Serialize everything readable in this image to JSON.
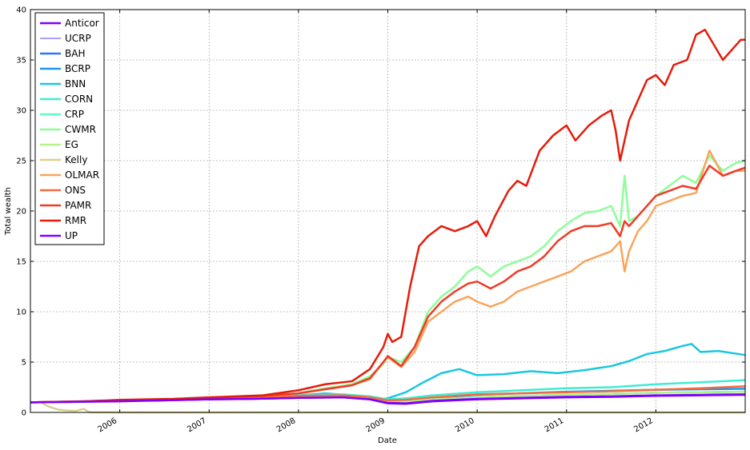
{
  "chart_data": {
    "type": "line",
    "title": "",
    "xlabel": "Date",
    "ylabel": "Total wealth",
    "xlim": [
      2005.0,
      2013.0
    ],
    "ylim": [
      0,
      40
    ],
    "x_ticks": [
      {
        "value": 2006.0,
        "label": "2006"
      },
      {
        "value": 2007.0,
        "label": "2007"
      },
      {
        "value": 2008.0,
        "label": "2008"
      },
      {
        "value": 2009.0,
        "label": "2009"
      },
      {
        "value": 2010.0,
        "label": "2010"
      },
      {
        "value": 2011.0,
        "label": "2011"
      },
      {
        "value": 2012.0,
        "label": "2012"
      }
    ],
    "y_ticks": [
      0,
      5,
      10,
      15,
      20,
      25,
      30,
      35,
      40
    ],
    "grid": true,
    "legend_position": "top-left",
    "series": [
      {
        "name": "Anticor",
        "color": "#7f00ff",
        "width": 2.5,
        "x": [
          2005.0,
          2005.5,
          2006.0,
          2006.5,
          2007.0,
          2007.5,
          2008.0,
          2008.5,
          2008.8,
          2009.0,
          2009.2,
          2009.5,
          2010.0,
          2010.5,
          2011.0,
          2011.5,
          2012.0,
          2012.5,
          2013.0
        ],
        "y": [
          1.0,
          1.05,
          1.15,
          1.2,
          1.3,
          1.35,
          1.45,
          1.5,
          1.3,
          0.9,
          0.85,
          1.1,
          1.3,
          1.4,
          1.5,
          1.55,
          1.65,
          1.7,
          1.75
        ]
      },
      {
        "name": "UCRP",
        "color": "#5a3cfd",
        "width": 1.0,
        "x": [
          2005.0,
          2005.5,
          2006.0,
          2006.5,
          2007.0,
          2007.5,
          2008.0,
          2008.5,
          2008.8,
          2009.0,
          2009.2,
          2009.5,
          2010.0,
          2010.5,
          2011.0,
          2011.5,
          2012.0,
          2012.5,
          2013.0
        ],
        "y": [
          1.0,
          1.05,
          1.15,
          1.25,
          1.35,
          1.4,
          1.55,
          1.6,
          1.4,
          1.0,
          1.0,
          1.2,
          1.45,
          1.55,
          1.7,
          1.8,
          1.9,
          1.95,
          2.0
        ]
      },
      {
        "name": "BAH",
        "color": "#2c78f3",
        "width": 2.5,
        "x": [
          2005.0,
          2005.5,
          2006.0,
          2006.5,
          2007.0,
          2007.5,
          2008.0,
          2008.5,
          2008.8,
          2009.0,
          2009.2,
          2009.5,
          2010.0,
          2010.5,
          2011.0,
          2011.5,
          2012.0,
          2012.5,
          2013.0
        ],
        "y": [
          1.0,
          1.05,
          1.15,
          1.25,
          1.35,
          1.45,
          1.55,
          1.6,
          1.4,
          1.1,
          1.05,
          1.3,
          1.5,
          1.65,
          1.75,
          1.85,
          1.95,
          2.0,
          2.05
        ]
      },
      {
        "name": "BCRP",
        "color": "#1996f3",
        "width": 2.5,
        "x": [
          2005.0,
          2005.5,
          2006.0,
          2006.5,
          2007.0,
          2007.5,
          2008.0,
          2008.5,
          2008.8,
          2009.0,
          2009.2,
          2009.5,
          2010.0,
          2010.5,
          2011.0,
          2011.5,
          2012.0,
          2012.5,
          2013.0
        ],
        "y": [
          1.0,
          1.05,
          1.2,
          1.3,
          1.4,
          1.5,
          1.65,
          1.7,
          1.5,
          1.2,
          1.2,
          1.45,
          1.75,
          1.9,
          2.05,
          2.15,
          2.25,
          2.3,
          2.35
        ]
      },
      {
        "name": "BNN",
        "color": "#1ac7e0",
        "width": 2.5,
        "x": [
          2005.0,
          2005.5,
          2006.0,
          2006.5,
          2007.0,
          2007.5,
          2008.0,
          2008.3,
          2008.6,
          2008.9,
          2009.0,
          2009.2,
          2009.4,
          2009.6,
          2009.8,
          2010.0,
          2010.3,
          2010.6,
          2010.9,
          2011.2,
          2011.5,
          2011.7,
          2011.9,
          2012.1,
          2012.3,
          2012.4,
          2012.5,
          2012.7,
          2013.0
        ],
        "y": [
          1.0,
          1.05,
          1.2,
          1.3,
          1.45,
          1.5,
          1.7,
          1.9,
          1.7,
          1.3,
          1.4,
          2.0,
          3.0,
          3.9,
          4.3,
          3.7,
          3.8,
          4.1,
          3.9,
          4.2,
          4.6,
          5.1,
          5.8,
          6.1,
          6.6,
          6.8,
          6.0,
          6.1,
          5.7
        ]
      },
      {
        "name": "CORN",
        "color": "#40ecd4",
        "width": 2.5,
        "x": [
          2005.0,
          2005.5,
          2006.0,
          2006.5,
          2007.0,
          2007.5,
          2008.0,
          2008.5,
          2008.8,
          2009.0,
          2009.2,
          2009.5,
          2010.0,
          2010.5,
          2011.0,
          2011.5,
          2012.0,
          2012.5,
          2013.0
        ],
        "y": [
          1.0,
          1.1,
          1.2,
          1.3,
          1.45,
          1.55,
          1.7,
          1.8,
          1.6,
          1.3,
          1.4,
          1.7,
          2.0,
          2.2,
          2.4,
          2.5,
          2.8,
          3.0,
          3.2
        ]
      },
      {
        "name": "CRP",
        "color": "#66fcc0",
        "width": 2.5,
        "x": [
          2005.0,
          2005.5,
          2006.0,
          2006.5,
          2007.0,
          2007.5,
          2008.0,
          2008.5,
          2008.8,
          2009.0,
          2009.2,
          2009.5,
          2010.0,
          2010.5,
          2011.0,
          2011.5,
          2012.0,
          2012.5,
          2013.0
        ],
        "y": [
          1.0,
          1.05,
          1.15,
          1.25,
          1.35,
          1.45,
          1.55,
          1.6,
          1.4,
          1.1,
          1.05,
          1.3,
          1.5,
          1.65,
          1.75,
          1.85,
          1.95,
          2.0,
          2.05
        ]
      },
      {
        "name": "CWMR",
        "color": "#8dfe9a",
        "width": 2.5,
        "x": [
          2005.0,
          2005.3,
          2005.6,
          2006.0,
          2006.3,
          2006.6,
          2007.0,
          2007.3,
          2007.6,
          2008.0,
          2008.3,
          2008.6,
          2008.8,
          2008.95,
          2009.0,
          2009.15,
          2009.3,
          2009.45,
          2009.6,
          2009.75,
          2009.9,
          2010.0,
          2010.15,
          2010.3,
          2010.45,
          2010.6,
          2010.75,
          2010.9,
          2011.05,
          2011.2,
          2011.35,
          2011.5,
          2011.6,
          2011.65,
          2011.7,
          2011.8,
          2011.9,
          2012.0,
          2012.15,
          2012.3,
          2012.45,
          2012.6,
          2012.75,
          2012.9,
          2013.0
        ],
        "y": [
          1.0,
          1.05,
          1.1,
          1.2,
          1.25,
          1.3,
          1.45,
          1.55,
          1.65,
          1.9,
          2.4,
          2.8,
          3.6,
          4.8,
          5.5,
          5.0,
          6.5,
          10.0,
          11.5,
          12.5,
          14.0,
          14.5,
          13.5,
          14.5,
          15.0,
          15.5,
          16.5,
          18.0,
          19.0,
          19.8,
          20.0,
          20.5,
          18.5,
          23.5,
          19.0,
          19.5,
          20.5,
          21.5,
          22.5,
          23.5,
          22.8,
          25.5,
          24.0,
          24.8,
          25.0
        ]
      },
      {
        "name": "EG",
        "color": "#b3f386",
        "width": 2.5,
        "x": [
          2005.0,
          2005.5,
          2006.0,
          2006.5,
          2007.0,
          2007.5,
          2008.0,
          2008.5,
          2008.8,
          2009.0,
          2009.2,
          2009.5,
          2010.0,
          2010.5,
          2011.0,
          2011.5,
          2012.0,
          2012.5,
          2013.0
        ],
        "y": [
          1.0,
          1.05,
          1.15,
          1.25,
          1.35,
          1.45,
          1.55,
          1.6,
          1.4,
          1.1,
          1.05,
          1.3,
          1.5,
          1.65,
          1.75,
          1.85,
          1.95,
          2.0,
          2.05
        ]
      },
      {
        "name": "Kelly",
        "color": "#d9d08f",
        "width": 2.5,
        "x": [
          2005.0,
          2005.12,
          2005.2,
          2005.3,
          2005.4,
          2005.5,
          2005.6,
          2005.65,
          2005.7,
          2006.0,
          2013.0
        ],
        "y": [
          1.0,
          1.0,
          0.6,
          0.3,
          0.2,
          0.15,
          0.35,
          0.05,
          0.01,
          0.0,
          0.0
        ]
      },
      {
        "name": "OLMAR",
        "color": "#f9a45c",
        "width": 2.5,
        "x": [
          2005.0,
          2005.3,
          2005.6,
          2006.0,
          2006.3,
          2006.6,
          2007.0,
          2007.3,
          2007.6,
          2008.0,
          2008.3,
          2008.6,
          2008.8,
          2008.95,
          2009.0,
          2009.15,
          2009.3,
          2009.45,
          2009.6,
          2009.75,
          2009.9,
          2010.0,
          2010.15,
          2010.3,
          2010.45,
          2010.6,
          2010.75,
          2010.9,
          2011.05,
          2011.2,
          2011.35,
          2011.5,
          2011.6,
          2011.65,
          2011.7,
          2011.8,
          2011.9,
          2012.0,
          2012.15,
          2012.3,
          2012.45,
          2012.6,
          2012.75,
          2012.9,
          2013.0
        ],
        "y": [
          1.0,
          1.05,
          1.1,
          1.2,
          1.25,
          1.3,
          1.45,
          1.55,
          1.65,
          1.9,
          2.3,
          2.7,
          3.3,
          5.0,
          5.5,
          4.5,
          6.0,
          9.0,
          10.0,
          11.0,
          11.5,
          11.0,
          10.5,
          11.0,
          12.0,
          12.5,
          13.0,
          13.5,
          14.0,
          15.0,
          15.5,
          16.0,
          17.0,
          14.0,
          16.0,
          18.0,
          19.0,
          20.5,
          21.0,
          21.5,
          21.8,
          26.0,
          23.5,
          24.0,
          24.0
        ]
      },
      {
        "name": "ONS",
        "color": "#f26c40",
        "width": 2.5,
        "x": [
          2005.0,
          2005.5,
          2006.0,
          2006.5,
          2007.0,
          2007.5,
          2008.0,
          2008.5,
          2008.8,
          2009.0,
          2009.2,
          2009.5,
          2010.0,
          2010.5,
          2011.0,
          2011.5,
          2012.0,
          2012.5,
          2013.0
        ],
        "y": [
          1.0,
          1.05,
          1.2,
          1.3,
          1.45,
          1.5,
          1.65,
          1.7,
          1.5,
          1.2,
          1.25,
          1.5,
          1.8,
          1.9,
          2.0,
          2.1,
          2.25,
          2.4,
          2.6
        ]
      },
      {
        "name": "PAMR",
        "color": "#f03a26",
        "width": 2.5,
        "x": [
          2005.0,
          2005.3,
          2005.6,
          2006.0,
          2006.3,
          2006.6,
          2007.0,
          2007.3,
          2007.6,
          2008.0,
          2008.3,
          2008.6,
          2008.8,
          2008.95,
          2009.0,
          2009.15,
          2009.3,
          2009.45,
          2009.6,
          2009.75,
          2009.9,
          2010.0,
          2010.15,
          2010.3,
          2010.45,
          2010.6,
          2010.75,
          2010.9,
          2011.05,
          2011.2,
          2011.35,
          2011.5,
          2011.6,
          2011.65,
          2011.7,
          2011.8,
          2011.9,
          2012.0,
          2012.15,
          2012.3,
          2012.45,
          2012.6,
          2012.75,
          2012.9,
          2013.0
        ],
        "y": [
          1.0,
          1.05,
          1.1,
          1.2,
          1.25,
          1.3,
          1.45,
          1.55,
          1.65,
          1.9,
          2.3,
          2.7,
          3.4,
          5.0,
          5.6,
          4.6,
          6.5,
          9.5,
          11.0,
          12.0,
          12.8,
          13.0,
          12.3,
          13.0,
          14.0,
          14.5,
          15.5,
          17.0,
          18.0,
          18.5,
          18.5,
          18.8,
          17.5,
          19.0,
          18.5,
          19.5,
          20.5,
          21.5,
          22.0,
          22.5,
          22.2,
          24.5,
          23.5,
          24.0,
          24.3
        ]
      },
      {
        "name": "RMR",
        "color": "#e51c0b",
        "width": 2.5,
        "x": [
          2005.0,
          2005.3,
          2005.6,
          2006.0,
          2006.3,
          2006.6,
          2007.0,
          2007.3,
          2007.6,
          2008.0,
          2008.3,
          2008.6,
          2008.8,
          2008.95,
          2009.0,
          2009.05,
          2009.15,
          2009.25,
          2009.35,
          2009.45,
          2009.6,
          2009.75,
          2009.9,
          2010.0,
          2010.1,
          2010.2,
          2010.35,
          2010.45,
          2010.55,
          2010.7,
          2010.85,
          2011.0,
          2011.1,
          2011.25,
          2011.4,
          2011.5,
          2011.55,
          2011.6,
          2011.65,
          2011.7,
          2011.8,
          2011.9,
          2012.0,
          2012.1,
          2012.2,
          2012.35,
          2012.45,
          2012.55,
          2012.65,
          2012.75,
          2012.85,
          2012.95,
          2013.0
        ],
        "y": [
          1.0,
          1.05,
          1.1,
          1.25,
          1.3,
          1.35,
          1.5,
          1.6,
          1.7,
          2.2,
          2.8,
          3.1,
          4.3,
          6.5,
          7.8,
          7.0,
          7.5,
          12.5,
          16.5,
          17.5,
          18.5,
          18.0,
          18.5,
          19.0,
          17.5,
          19.5,
          22.0,
          23.0,
          22.5,
          26.0,
          27.5,
          28.5,
          27.0,
          28.5,
          29.5,
          30.0,
          28.0,
          25.0,
          27.0,
          29.0,
          31.0,
          33.0,
          33.5,
          32.5,
          34.5,
          35.0,
          37.5,
          38.0,
          36.5,
          35.0,
          36.0,
          37.0,
          37.0
        ]
      },
      {
        "name": "UP",
        "color": "#7f00ff",
        "width": 2.5,
        "x": [
          2005.0,
          2005.5,
          2006.0,
          2006.5,
          2007.0,
          2007.5,
          2008.0,
          2008.5,
          2008.8,
          2009.0,
          2009.2,
          2009.5,
          2010.0,
          2010.5,
          2011.0,
          2011.5,
          2012.0,
          2012.5,
          2013.0
        ],
        "y": [
          1.0,
          1.05,
          1.1,
          1.2,
          1.3,
          1.35,
          1.45,
          1.5,
          1.3,
          0.95,
          0.9,
          1.15,
          1.35,
          1.45,
          1.55,
          1.6,
          1.7,
          1.75,
          1.8
        ]
      }
    ]
  }
}
